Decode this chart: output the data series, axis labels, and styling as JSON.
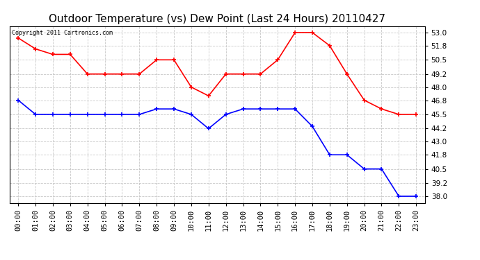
{
  "title": "Outdoor Temperature (vs) Dew Point (Last 24 Hours) 20110427",
  "copyright_text": "Copyright 2011 Cartronics.com",
  "hours": [
    0,
    1,
    2,
    3,
    4,
    5,
    6,
    7,
    8,
    9,
    10,
    11,
    12,
    13,
    14,
    15,
    16,
    17,
    18,
    19,
    20,
    21,
    22,
    23
  ],
  "temp_red": [
    52.5,
    51.5,
    51.0,
    51.0,
    49.2,
    49.2,
    49.2,
    49.2,
    50.5,
    50.5,
    48.0,
    47.2,
    49.2,
    49.2,
    49.2,
    50.5,
    53.0,
    53.0,
    51.8,
    49.2,
    46.8,
    46.0,
    45.5,
    45.5
  ],
  "dew_blue": [
    46.8,
    45.5,
    45.5,
    45.5,
    45.5,
    45.5,
    45.5,
    45.5,
    46.0,
    46.0,
    45.5,
    44.2,
    45.5,
    46.0,
    46.0,
    46.0,
    46.0,
    44.4,
    41.8,
    41.8,
    40.5,
    40.5,
    38.0,
    38.0
  ],
  "ylim_min": 37.4,
  "ylim_max": 53.6,
  "yticks": [
    38.0,
    39.2,
    40.5,
    41.8,
    43.0,
    44.2,
    45.5,
    46.8,
    48.0,
    49.2,
    50.5,
    51.8,
    53.0
  ],
  "red_color": "#ff0000",
  "blue_color": "#0000ff",
  "bg_color": "#ffffff",
  "grid_color": "#c8c8c8",
  "title_fontsize": 11,
  "tick_label_fontsize": 7.5
}
